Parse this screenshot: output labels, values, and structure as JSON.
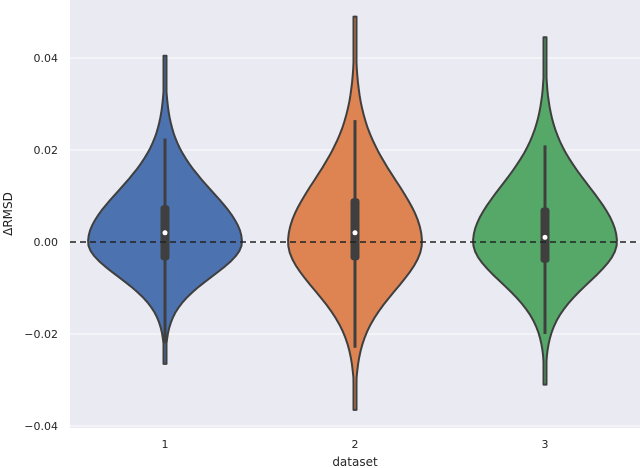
{
  "chart_data": {
    "type": "violin",
    "title": "",
    "xlabel": "dataset",
    "ylabel": "ΔRMSD",
    "categories": [
      "1",
      "2",
      "3"
    ],
    "ylim": [
      -0.04,
      0.0465
    ],
    "yticks": [
      -0.04,
      -0.02,
      0.0,
      0.02,
      0.04
    ],
    "ytick_labels": [
      "−0.04",
      "−0.02",
      "0.00",
      "0.02",
      "0.04"
    ],
    "grid": true,
    "reference_line": {
      "y": 0.0,
      "style": "dashed",
      "color": "#222222"
    },
    "series": [
      {
        "name": "1",
        "color": "#4c72b0",
        "min": -0.0265,
        "max": 0.0405,
        "whisker_low": -0.022,
        "whisker_high": 0.0225,
        "q1": -0.004,
        "median": 0.002,
        "q3": 0.008
      },
      {
        "name": "2",
        "color": "#dd8452",
        "min": -0.0365,
        "max": 0.049,
        "whisker_low": -0.023,
        "whisker_high": 0.0265,
        "q1": -0.004,
        "median": 0.002,
        "q3": 0.0095
      },
      {
        "name": "3",
        "color": "#55a868",
        "min": -0.031,
        "max": 0.0445,
        "whisker_low": -0.02,
        "whisker_high": 0.021,
        "q1": -0.0045,
        "median": 0.001,
        "q3": 0.0075
      }
    ]
  },
  "colors": {
    "plot_bg": "#eaeaf2",
    "grid": "#ffffff",
    "outline": "#3f3f3f"
  }
}
